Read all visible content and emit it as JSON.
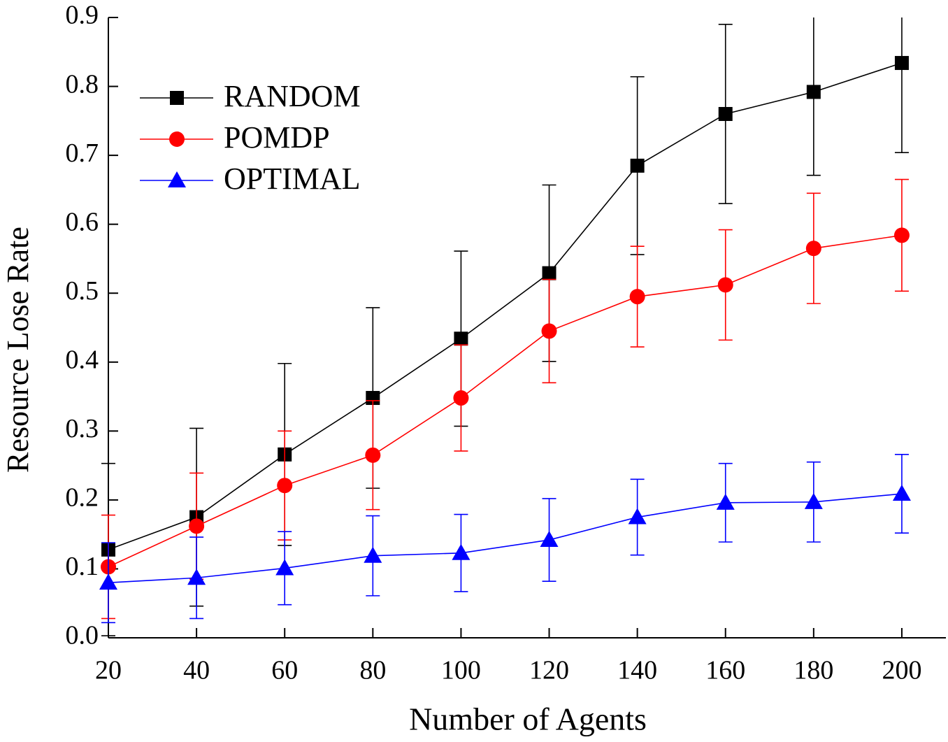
{
  "chart_data": {
    "type": "line",
    "x_label": "Number of Agents",
    "y_label": "Resource Lose Rate",
    "x": [
      20,
      40,
      60,
      80,
      100,
      120,
      140,
      160,
      180,
      200
    ],
    "xlim": [
      20,
      210
    ],
    "xticks": [
      20,
      40,
      60,
      80,
      100,
      120,
      140,
      160,
      180,
      200
    ],
    "ylim": [
      0,
      0.9
    ],
    "yticks": [
      {
        "value": 0,
        "label": "0.0"
      },
      0.1,
      0.2,
      0.3,
      0.4,
      0.5,
      0.6,
      0.7,
      0.8,
      0.9
    ],
    "legend": "upper left",
    "series": [
      {
        "name": "RANDOM",
        "color": "#000000",
        "marker": "square",
        "values": [
          0.128,
          0.175,
          0.266,
          0.348,
          0.434,
          0.529,
          0.685,
          0.76,
          0.792,
          0.834
        ],
        "errors": [
          0.125,
          0.129,
          0.132,
          0.131,
          0.127,
          0.128,
          0.129,
          0.13,
          0.121,
          0.13
        ]
      },
      {
        "name": "POMDP",
        "color": "#ff0000",
        "marker": "circle",
        "values": [
          0.103,
          0.162,
          0.221,
          0.265,
          0.348,
          0.445,
          0.495,
          0.512,
          0.565,
          0.584
        ],
        "errors": [
          0.075,
          0.077,
          0.079,
          0.079,
          0.077,
          0.075,
          0.073,
          0.08,
          0.08,
          0.081
        ]
      },
      {
        "name": "OPTIMAL",
        "color": "#0000ff",
        "marker": "triangle",
        "values": [
          0.08,
          0.087,
          0.101,
          0.119,
          0.123,
          0.142,
          0.175,
          0.196,
          0.197,
          0.209
        ],
        "errors": [
          0.058,
          0.059,
          0.053,
          0.058,
          0.056,
          0.06,
          0.055,
          0.057,
          0.058,
          0.057
        ]
      }
    ]
  }
}
